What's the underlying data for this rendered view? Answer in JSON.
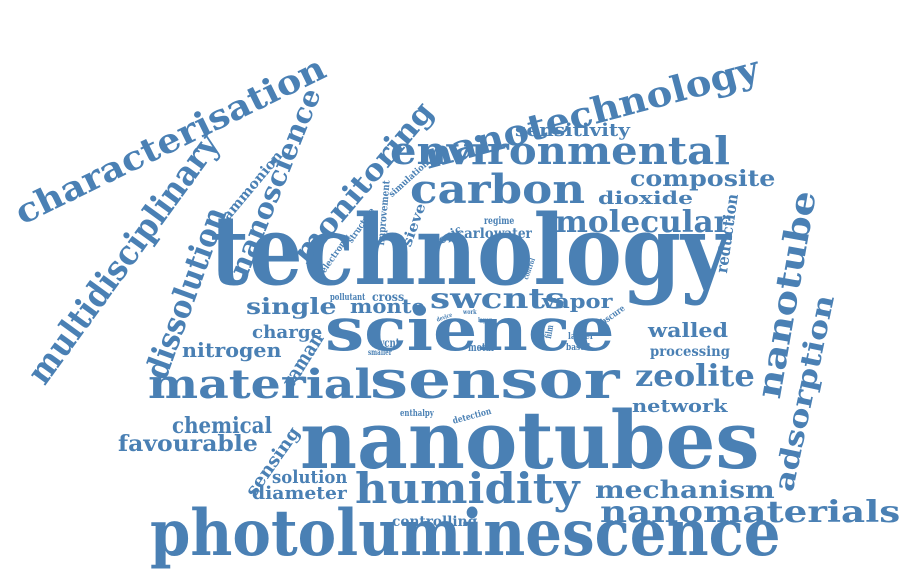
{
  "color": "#4a80b4",
  "words": [
    "technology",
    "nanotubes",
    "photoluminescence",
    "science",
    "sensor",
    "humidity",
    "carbon",
    "environmental",
    "nanotechnology",
    "material",
    "nanomaterials",
    "molecular",
    "swcnts",
    "zeolite",
    "characterisation",
    "multidisciplinary",
    "dissolution",
    "nanoscience",
    "monitoring",
    "nanotube",
    "adsorption",
    "mechanism",
    "composite",
    "sensitivity",
    "dioxide",
    "reduction",
    "single",
    "monte",
    "vapor",
    "walled",
    "charge",
    "nitrogen",
    "raman",
    "chemical",
    "favourable",
    "sensing",
    "solution",
    "diameter",
    "controlling",
    "network",
    "processing",
    "ammonion",
    "simulation",
    "improvement",
    "structure",
    "electronic",
    "sieve",
    "topic",
    "regime",
    "carlo",
    "water",
    "pollutant",
    "cross",
    "swcnt",
    "smaller",
    "metal",
    "larger",
    "based",
    "film",
    "obscure",
    "control",
    "device",
    "work",
    "layer",
    "enthalpy",
    "detection"
  ]
}
